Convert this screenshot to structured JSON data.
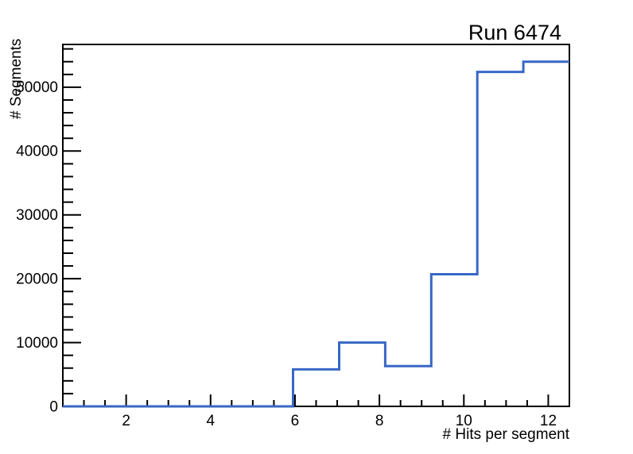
{
  "window": {
    "background": "#ffffff",
    "foreground": "#000000"
  },
  "chart_data": {
    "type": "histogram-step",
    "title": "Run 6474",
    "xlabel": "# Hits per segment",
    "ylabel": "# Segments",
    "xlim": [
      0.5,
      12.5
    ],
    "ylim": [
      0,
      56700
    ],
    "n_bins": 11,
    "bin_edges": [
      0.5,
      1.5909,
      2.6818,
      3.7727,
      4.8636,
      5.9545,
      7.0455,
      8.1364,
      9.2273,
      10.3182,
      11.4091,
      12.5
    ],
    "values": [
      0,
      0,
      0,
      0,
      0,
      5800,
      10000,
      6300,
      20700,
      52400,
      54000
    ],
    "x_major_ticks": [
      2,
      4,
      6,
      8,
      10,
      12
    ],
    "x_minor_step": 0.5,
    "y_major_ticks": [
      0,
      10000,
      20000,
      30000,
      40000,
      50000
    ],
    "y_minor_step": 2000,
    "grid": false,
    "legend": null,
    "line_color": "#3867c5",
    "axis_color": "#000000",
    "tick_side": "inward"
  }
}
